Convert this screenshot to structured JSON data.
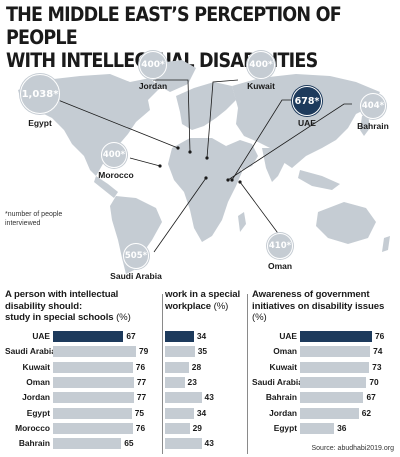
{
  "title_line1": "THE MIDDLE EAST’S PERCEPTION OF PEOPLE",
  "title_line2": "WITH INTELLECTUAL DISABILITIES",
  "map_note": "*number of people interviewed",
  "source": "Source: abudhabi2019.org",
  "colors": {
    "highlight": "#1d3a5c",
    "bar": "#c5ccd3",
    "land": "#c5ccd3"
  },
  "map_bubbles": [
    {
      "country": "Egypt",
      "value": "1,038*",
      "highlight": false
    },
    {
      "country": "Jordan",
      "value": "400*",
      "highlight": false
    },
    {
      "country": "Kuwait",
      "value": "400*",
      "highlight": false
    },
    {
      "country": "UAE",
      "value": "678*",
      "highlight": true
    },
    {
      "country": "Bahrain",
      "value": "404*",
      "highlight": false
    },
    {
      "country": "Morocco",
      "value": "400*",
      "highlight": false
    },
    {
      "country": "Saudi Arabia",
      "value": "505*",
      "highlight": false
    },
    {
      "country": "Oman",
      "value": "410*",
      "highlight": false
    }
  ],
  "chart_data": [
    {
      "type": "bar",
      "title": "A person with intellectual disability should: study in special schools",
      "unit": "(%)",
      "categories": [
        "UAE",
        "Saudi Arabia",
        "Kuwait",
        "Oman",
        "Jordan",
        "Egypt",
        "Morocco",
        "Bahrain"
      ],
      "values": [
        67,
        79,
        76,
        77,
        77,
        75,
        76,
        65
      ],
      "highlight": "UAE"
    },
    {
      "type": "bar",
      "title": "work in a special workplace",
      "unit": "(%)",
      "categories": [
        "UAE",
        "Saudi Arabia",
        "Kuwait",
        "Oman",
        "Jordan",
        "Egypt",
        "Morocco",
        "Bahrain"
      ],
      "values": [
        34,
        35,
        28,
        23,
        43,
        34,
        29,
        43
      ],
      "highlight": "UAE"
    },
    {
      "type": "bar",
      "title": "Awareness of government initiatives on disability issues",
      "unit": "(%)",
      "categories": [
        "UAE",
        "Oman",
        "Kuwait",
        "Saudi Arabia",
        "Bahrain",
        "Jordan",
        "Egypt"
      ],
      "values": [
        76,
        74,
        73,
        70,
        67,
        62,
        36
      ],
      "highlight": "UAE"
    }
  ],
  "panel_heads": [
    {
      "lines": [
        "A person with intellectual",
        "disability should:",
        "study in special schools"
      ],
      "unit": " (%)"
    },
    {
      "lines": [
        "work in a special",
        "workplace"
      ],
      "unit": " (%)"
    },
    {
      "lines": [
        "Awareness of government",
        "initiatives on disability issues"
      ],
      "unit": " (%)"
    }
  ]
}
